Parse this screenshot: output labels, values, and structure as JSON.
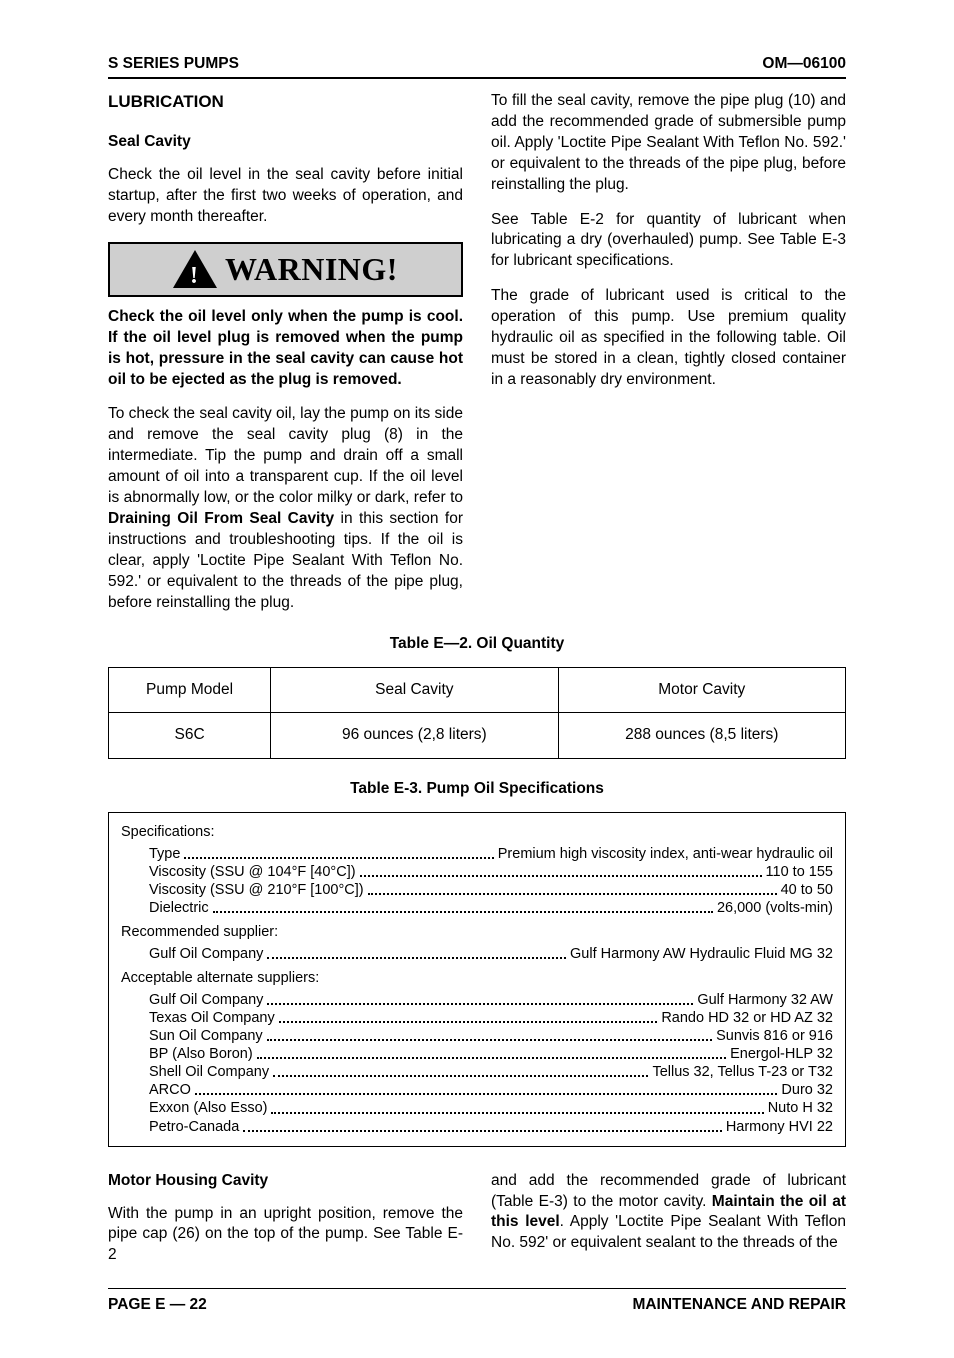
{
  "header": {
    "left": "S SERIES PUMPS",
    "right": "OM—06100"
  },
  "section_title": "LUBRICATION",
  "seal_cavity": {
    "heading": "Seal Cavity",
    "intro": "Check the oil level in the seal cavity before initial startup, after the first two weeks of operation, and every month thereafter.",
    "warning_label": "WARNING!",
    "warning_text": "Check the oil level only when the pump is cool. If the oil level plug is removed when the pump is hot, pressure in the seal cavity can cause hot oil to be ejected as the plug is removed.",
    "p_check_pre": "To check the seal cavity oil, lay the pump on its side and remove the seal cavity plug (8) in the intermediate. Tip the pump and drain off a small amount of oil into a transparent cup. If the oil level is abnormally low, or the color milky or dark, refer to ",
    "p_check_bold": "Draining Oil From Seal Cavity",
    "p_check_post": " in this section for instructions and troubleshooting tips. If the oil is clear, apply 'Loctite Pipe Sealant With Teflon No. 592.' or equivalent to the threads of the pipe plug, before reinstalling the plug.",
    "p_fill": "To fill the seal cavity, remove the pipe plug (10) and add the recommended grade of submersible pump oil. Apply 'Loctite Pipe Sealant With Teflon No. 592.' or equivalent to the threads of the pipe plug, before reinstalling the plug.",
    "p_see": "See Table E-2 for quantity of lubricant when lubricating a dry (overhauled) pump. See Table E-3 for lubricant specifications.",
    "p_grade": "The grade of lubricant used is critical to the operation of this pump. Use premium quality hydraulic oil as specified in the following table. Oil must be stored in a clean, tightly closed container in a reasonably dry environment."
  },
  "table_e2": {
    "title": "Table E—2.  Oil Quantity",
    "headers": [
      "Pump Model",
      "Seal Cavity",
      "Motor Cavity"
    ],
    "row": [
      "S6C",
      "96 ounces (2,8 liters)",
      "288 ounces (8,5 liters)"
    ]
  },
  "table_e3": {
    "title": "Table E-3.  Pump Oil Specifications",
    "specs_label": "Specifications:",
    "specs": [
      {
        "label": "Type",
        "value": "Premium high viscosity index, anti-wear hydraulic oil"
      },
      {
        "label": "Viscosity (SSU @ 104°F [40°C])",
        "value": "110 to 155"
      },
      {
        "label": "Viscosity (SSU @ 210°F [100°C])",
        "value": "40 to 50"
      },
      {
        "label": "Dielectric",
        "value": "26,000 (volts-min)"
      }
    ],
    "recommended_label": "Recommended supplier:",
    "recommended": [
      {
        "label": "Gulf Oil Company",
        "value": "Gulf Harmony AW Hydraulic Fluid MG 32"
      }
    ],
    "alternate_label": "Acceptable alternate suppliers:",
    "alternate": [
      {
        "label": "Gulf Oil Company",
        "value": "Gulf Harmony 32 AW"
      },
      {
        "label": "Texas Oil Company",
        "value": "Rando HD 32 or HD AZ 32"
      },
      {
        "label": "Sun Oil Company",
        "value": "Sunvis 816 or 916"
      },
      {
        "label": "BP (Also Boron)",
        "value": "Energol-HLP 32"
      },
      {
        "label": "Shell Oil Company",
        "value": "Tellus 32, Tellus T-23 or T32"
      },
      {
        "label": "ARCO",
        "value": "Duro 32"
      },
      {
        "label": "Exxon (Also Esso)",
        "value": "Nuto H 32"
      },
      {
        "label": "Petro-Canada",
        "value": "Harmony HVI 22"
      }
    ]
  },
  "motor_housing": {
    "heading": "Motor Housing Cavity",
    "p1": "With the pump in an upright position, remove the pipe cap (26) on the top of the pump. See Table E-2",
    "p2_pre": "and add the recommended grade of lubricant (Table E-3) to the motor cavity. ",
    "p2_bold": "Maintain the oil at this level",
    "p2_post": ". Apply 'Loctite Pipe Sealant With Teflon No. 592' or equivalent sealant to the threads of the"
  },
  "footer": {
    "left": "PAGE E — 22",
    "right": "MAINTENANCE AND REPAIR"
  }
}
